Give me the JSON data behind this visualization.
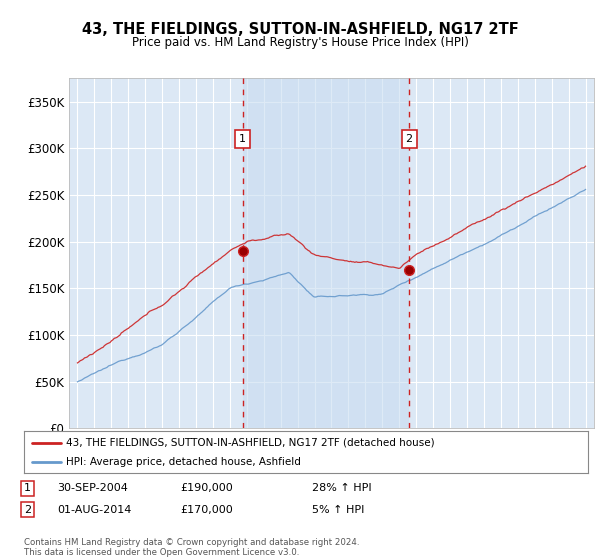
{
  "title": "43, THE FIELDINGS, SUTTON-IN-ASHFIELD, NG17 2TF",
  "subtitle": "Price paid vs. HM Land Registry's House Price Index (HPI)",
  "bg_color": "#ffffff",
  "plot_bg_color": "#dce8f5",
  "plot_bg_color_outside": "#ffffff",
  "shade_color": "#c8dcf0",
  "grid_color": "#ffffff",
  "hpi_color": "#6699cc",
  "price_color": "#cc2222",
  "sale1_date_x": 2004.75,
  "sale2_date_x": 2014.58,
  "sale1_label": "1",
  "sale2_label": "2",
  "legend_line1": "43, THE FIELDINGS, SUTTON-IN-ASHFIELD, NG17 2TF (detached house)",
  "legend_line2": "HPI: Average price, detached house, Ashfield",
  "footnote": "Contains HM Land Registry data © Crown copyright and database right 2024.\nThis data is licensed under the Open Government Licence v3.0.",
  "ylim": [
    0,
    375000
  ],
  "yticks": [
    0,
    50000,
    100000,
    150000,
    200000,
    250000,
    300000,
    350000
  ],
  "ytick_labels": [
    "£0",
    "£50K",
    "£100K",
    "£150K",
    "£200K",
    "£250K",
    "£300K",
    "£350K"
  ],
  "xlim_start": 1994.5,
  "xlim_end": 2025.5
}
